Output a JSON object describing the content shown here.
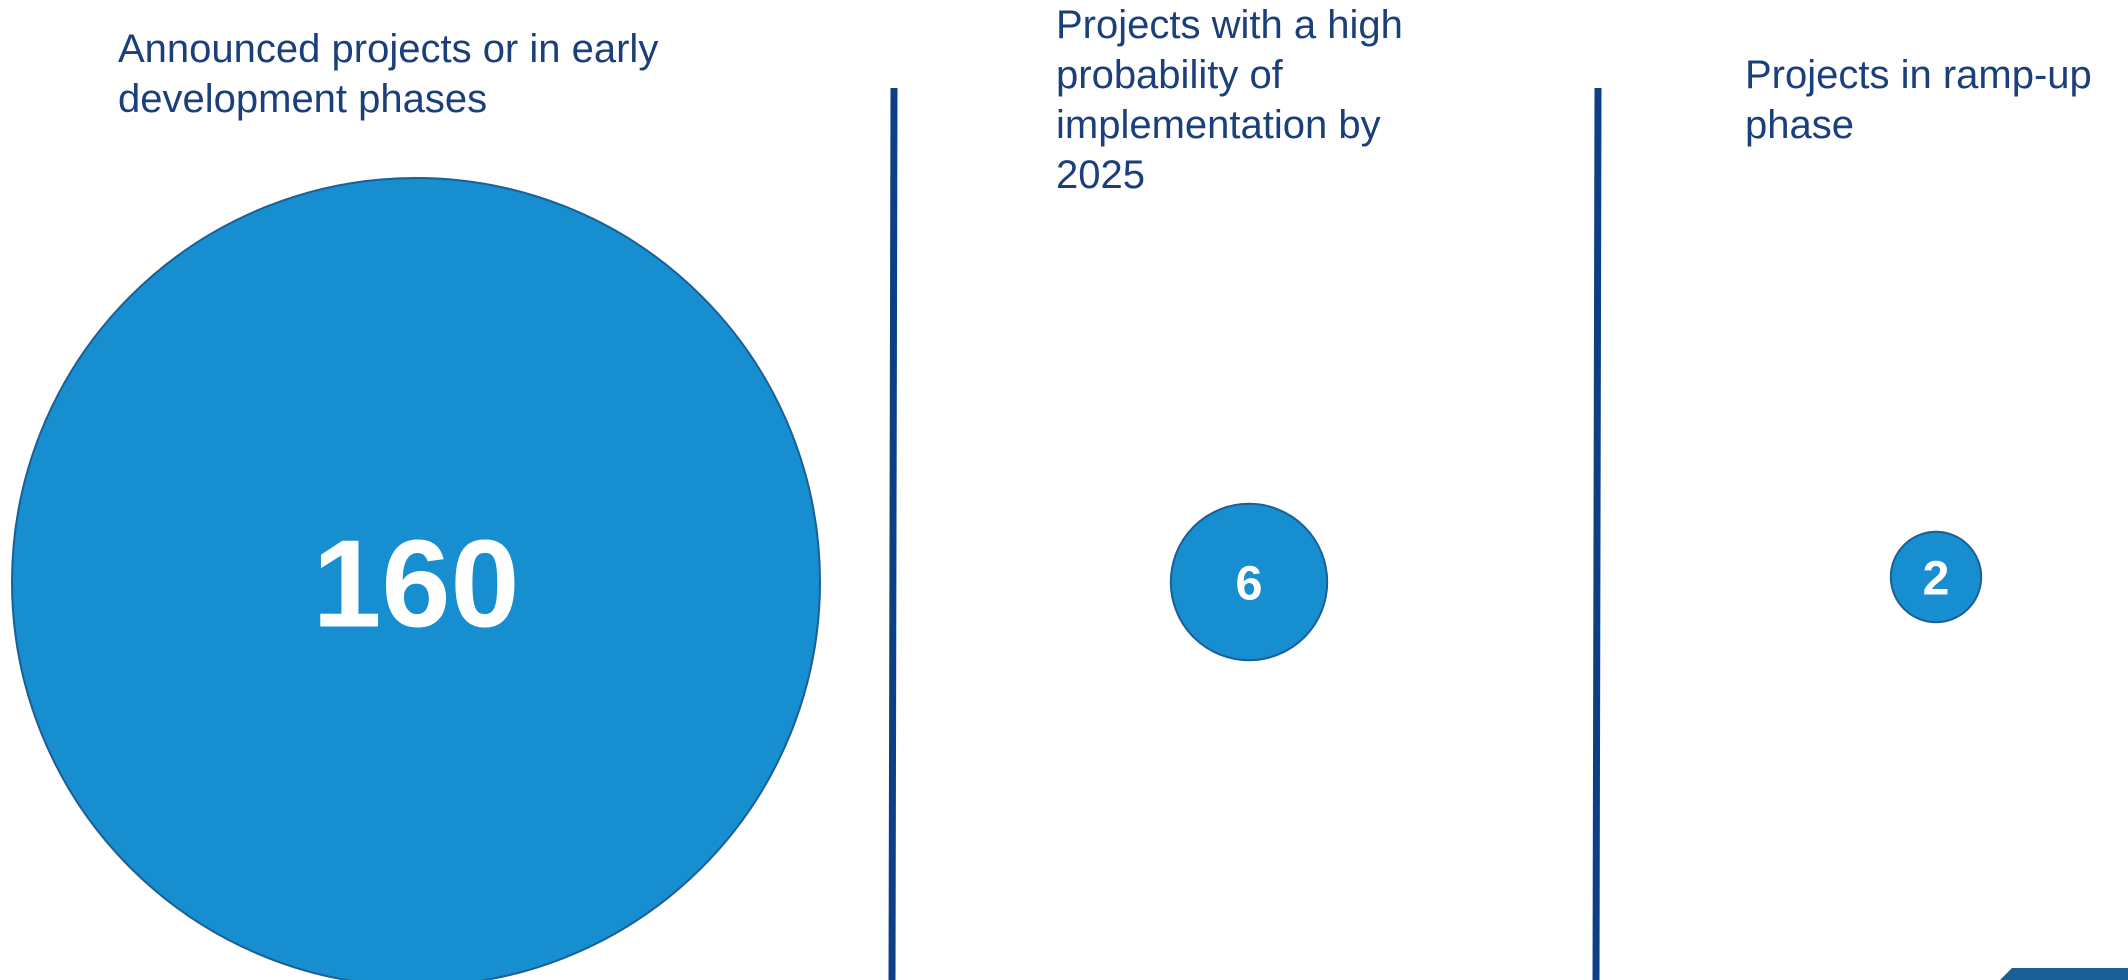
{
  "colors": {
    "circle_fill": "#178ecf",
    "circle_stroke": "#1a5f96",
    "divider": "#0d3f86",
    "title_text": "#1b3f7a",
    "value_on_circle": "#ffffff",
    "value_outside": "#0aa03a"
  },
  "chart_data": {
    "type": "bubble",
    "categories": [
      "Announced projects or in early development phases",
      "Projects with a high probability of implementation by 2025",
      "Projects in ramp-up phase"
    ],
    "values": [
      160,
      6,
      2
    ],
    "labels": [
      "160",
      "6",
      "2"
    ]
  }
}
